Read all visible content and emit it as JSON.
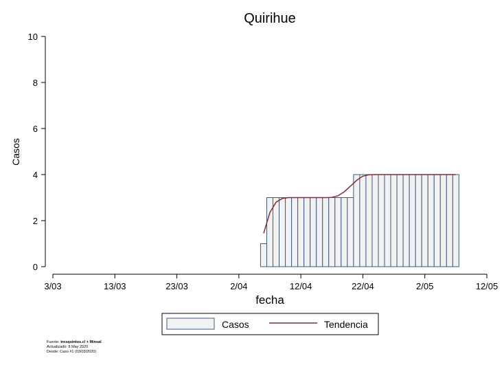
{
  "chart_data": {
    "type": "bar",
    "title": "Quirihue",
    "xlabel": "fecha",
    "ylabel": "Casos",
    "ylim": [
      0,
      10
    ],
    "yticks": [
      "0",
      "2",
      "4",
      "6",
      "8",
      "10"
    ],
    "xlim": [
      "2020-03-03",
      "2020-05-12"
    ],
    "xticks": [
      "3/03",
      "13/03",
      "23/03",
      "2/04",
      "12/04",
      "22/04",
      "2/05",
      "12/05"
    ],
    "bar_dates": [
      "2020-04-06",
      "2020-04-07",
      "2020-04-08",
      "2020-04-09",
      "2020-04-10",
      "2020-04-11",
      "2020-04-12",
      "2020-04-13",
      "2020-04-14",
      "2020-04-15",
      "2020-04-16",
      "2020-04-17",
      "2020-04-18",
      "2020-04-19",
      "2020-04-20",
      "2020-04-21",
      "2020-04-22",
      "2020-04-23",
      "2020-04-24",
      "2020-04-25",
      "2020-04-26",
      "2020-04-27",
      "2020-04-28",
      "2020-04-29",
      "2020-04-30",
      "2020-05-01",
      "2020-05-02",
      "2020-05-03",
      "2020-05-04",
      "2020-05-05",
      "2020-05-06",
      "2020-05-07"
    ],
    "series": [
      {
        "name": "Casos",
        "kind": "bar",
        "values": [
          1,
          3,
          3,
          3,
          3,
          3,
          3,
          3,
          3,
          3,
          3,
          3,
          3,
          3,
          3,
          4,
          4,
          4,
          4,
          4,
          4,
          4,
          4,
          4,
          4,
          4,
          4,
          4,
          4,
          4,
          4,
          4
        ]
      },
      {
        "name": "Tendencia",
        "kind": "line",
        "values": [
          1.45,
          2.35,
          2.8,
          2.96,
          3.0,
          3.0,
          3.0,
          3.0,
          3.0,
          3.0,
          3.0,
          3.01,
          3.08,
          3.25,
          3.5,
          3.75,
          3.93,
          3.99,
          4.0,
          4.0,
          4.0,
          4.0,
          4.0,
          4.0,
          4.0,
          4.0,
          4.0,
          4.0,
          4.0,
          4.0,
          4.0,
          4.0
        ]
      }
    ],
    "legend_position": "bottom",
    "colors": {
      "bar_fill": "#f2f2f2",
      "bar_stroke": "#3e5a84",
      "line": "#8b2b2e"
    }
  },
  "footer": {
    "source_label": "Fuente: ",
    "source_value": "tresquintos.cl + Minsal",
    "updated": "Actualizado: 8 May 2020",
    "since": "Desde: Caso #1  (03/03/2020)"
  }
}
